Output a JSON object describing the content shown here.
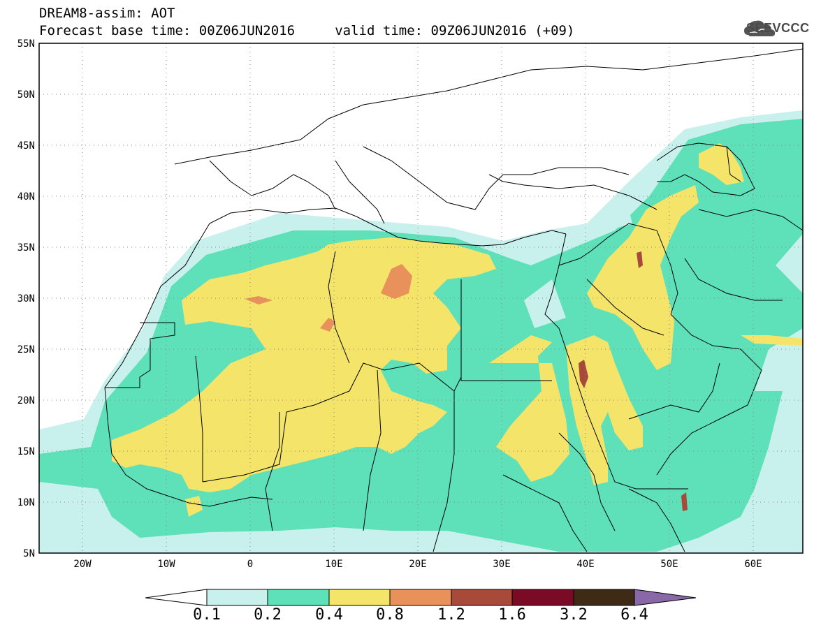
{
  "header": {
    "line1": "DREAM8-assim: AOT",
    "line2": "Forecast base time: 00Z06JUN2016     valid time: 09Z06JUN2016 (+09)"
  },
  "logo": {
    "text": "SEEVCCC",
    "icon": "cloud-icon"
  },
  "map": {
    "lon_range": [
      -25,
      65
    ],
    "lat_range": [
      5,
      55
    ],
    "lat_ticks": [
      "5N",
      "10N",
      "15N",
      "20N",
      "25N",
      "30N",
      "35N",
      "40N",
      "45N",
      "50N",
      "55N"
    ],
    "lon_ticks": [
      "20W",
      "10W",
      "0",
      "10E",
      "20E",
      "30E",
      "40E",
      "50E",
      "60E"
    ],
    "gridlines": "dotted"
  },
  "colorbar": {
    "labels": [
      "0.1",
      "0.2",
      "0.4",
      "0.8",
      "1.2",
      "1.6",
      "3.2",
      "6.4"
    ],
    "colors": [
      "#ffffff",
      "#c8f0ec",
      "#5ee0b8",
      "#f5e46a",
      "#e8915a",
      "#a84a3a",
      "#7a0a25",
      "#3e2a15",
      "#8a68a8"
    ]
  },
  "colors": {
    "level1": "#c8f0ec",
    "level2": "#5ee0b8",
    "level3": "#f5e46a",
    "level4": "#e8915a",
    "level5": "#a84a3a"
  }
}
